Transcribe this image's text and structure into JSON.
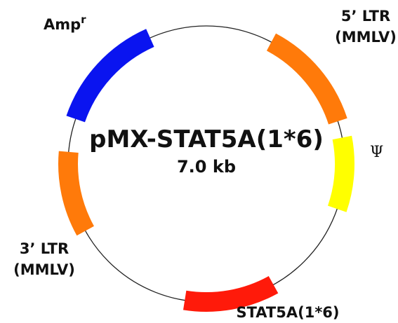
{
  "plasmid": {
    "name": "pMX-STAT5A(1*6)",
    "size": "7.0 kb"
  },
  "features": [
    {
      "id": "ampr",
      "label": "Amp",
      "label_sup": "r",
      "color": "#0a14f0"
    },
    {
      "id": "ltr5",
      "label_line1": "5’ LTR",
      "label_line2": "(MMLV)",
      "color": "#ff7a0a"
    },
    {
      "id": "psi",
      "label": "Ψ",
      "color": "#ffff00"
    },
    {
      "id": "stat5a",
      "label": "STAT5A(1*6)",
      "color": "#ff1a0a"
    },
    {
      "id": "ltr3",
      "label_line1": "3’ LTR",
      "label_line2": "(MMLV)",
      "color": "#ff7a0a"
    }
  ]
}
